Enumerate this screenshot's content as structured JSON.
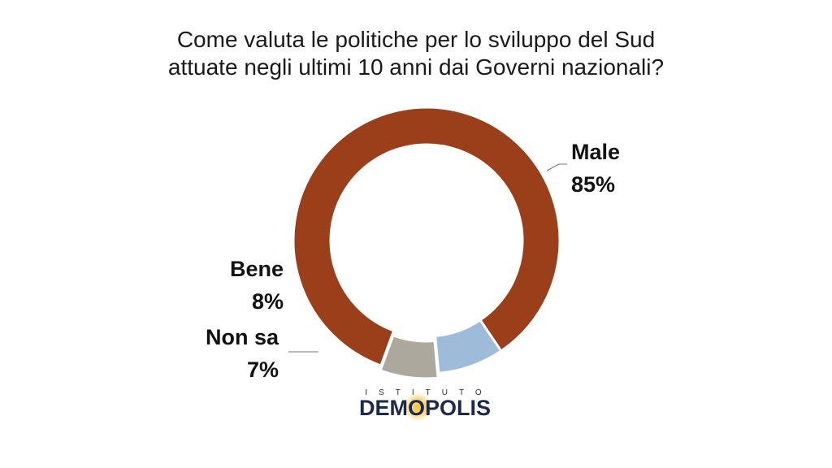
{
  "title_lines": [
    "Come valuta le politiche per lo sviluppo del Sud",
    "attuate negli ultimi 10 anni dai Governi nazionali?"
  ],
  "chart_data": {
    "type": "pie",
    "title": "Come valuta le politiche per lo sviluppo del Sud attuate negli ultimi 10 anni dai Governi nazionali?",
    "categories": [
      "Male",
      "Bene",
      "Non sa"
    ],
    "values": [
      85,
      8,
      7
    ],
    "labels": [
      "85%",
      "8%",
      "7%"
    ],
    "colors": [
      "#9b3f1a",
      "#9ebbd9",
      "#aca89e"
    ]
  },
  "logo": {
    "small_text": "ISTITUTO",
    "main_text": "DEMOPOLIS"
  }
}
